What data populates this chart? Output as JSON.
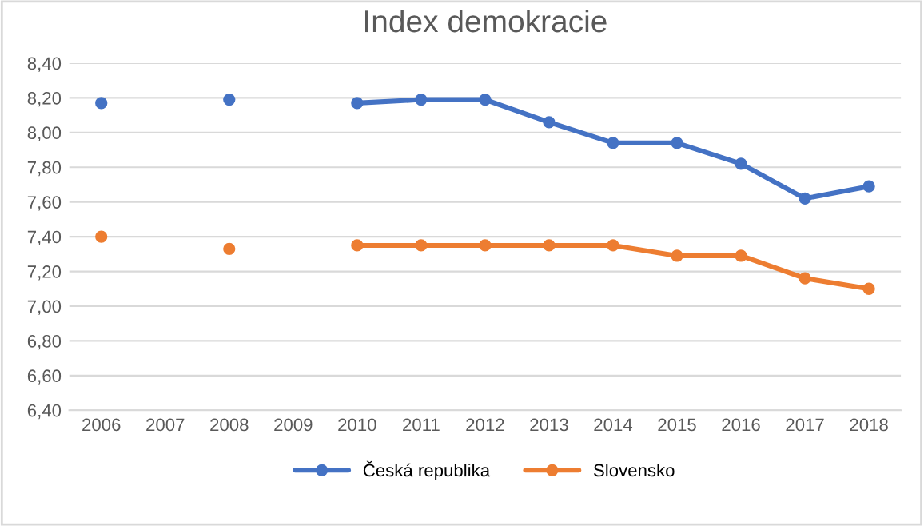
{
  "chart_data": {
    "type": "line",
    "title": "Index demokracie",
    "categories": [
      "2006",
      "2007",
      "2008",
      "2009",
      "2010",
      "2011",
      "2012",
      "2013",
      "2014",
      "2015",
      "2016",
      "2017",
      "2018"
    ],
    "series": [
      {
        "name": "Česká republika",
        "color": "#4472c4",
        "values": [
          8.17,
          null,
          8.19,
          null,
          8.17,
          8.19,
          8.19,
          8.06,
          7.94,
          7.94,
          7.82,
          7.62,
          7.69
        ]
      },
      {
        "name": "Slovensko",
        "color": "#ed7d31",
        "values": [
          7.4,
          null,
          7.33,
          null,
          7.35,
          7.35,
          7.35,
          7.35,
          7.35,
          7.29,
          7.29,
          7.16,
          7.1
        ]
      }
    ],
    "ylim": [
      6.4,
      8.4
    ],
    "yticks": [
      {
        "value": 6.4,
        "label": "6,40"
      },
      {
        "value": 6.6,
        "label": "6,60"
      },
      {
        "value": 6.8,
        "label": "6,80"
      },
      {
        "value": 7.0,
        "label": "7,00"
      },
      {
        "value": 7.2,
        "label": "7,20"
      },
      {
        "value": 7.4,
        "label": "7,40"
      },
      {
        "value": 7.6,
        "label": "7,60"
      },
      {
        "value": 7.8,
        "label": "7,80"
      },
      {
        "value": 8.0,
        "label": "8,00"
      },
      {
        "value": 8.2,
        "label": "8,20"
      },
      {
        "value": 8.4,
        "label": "8,40"
      }
    ],
    "grid": "y",
    "legend": "bottom",
    "marker": "circle",
    "line_style": "solid"
  }
}
